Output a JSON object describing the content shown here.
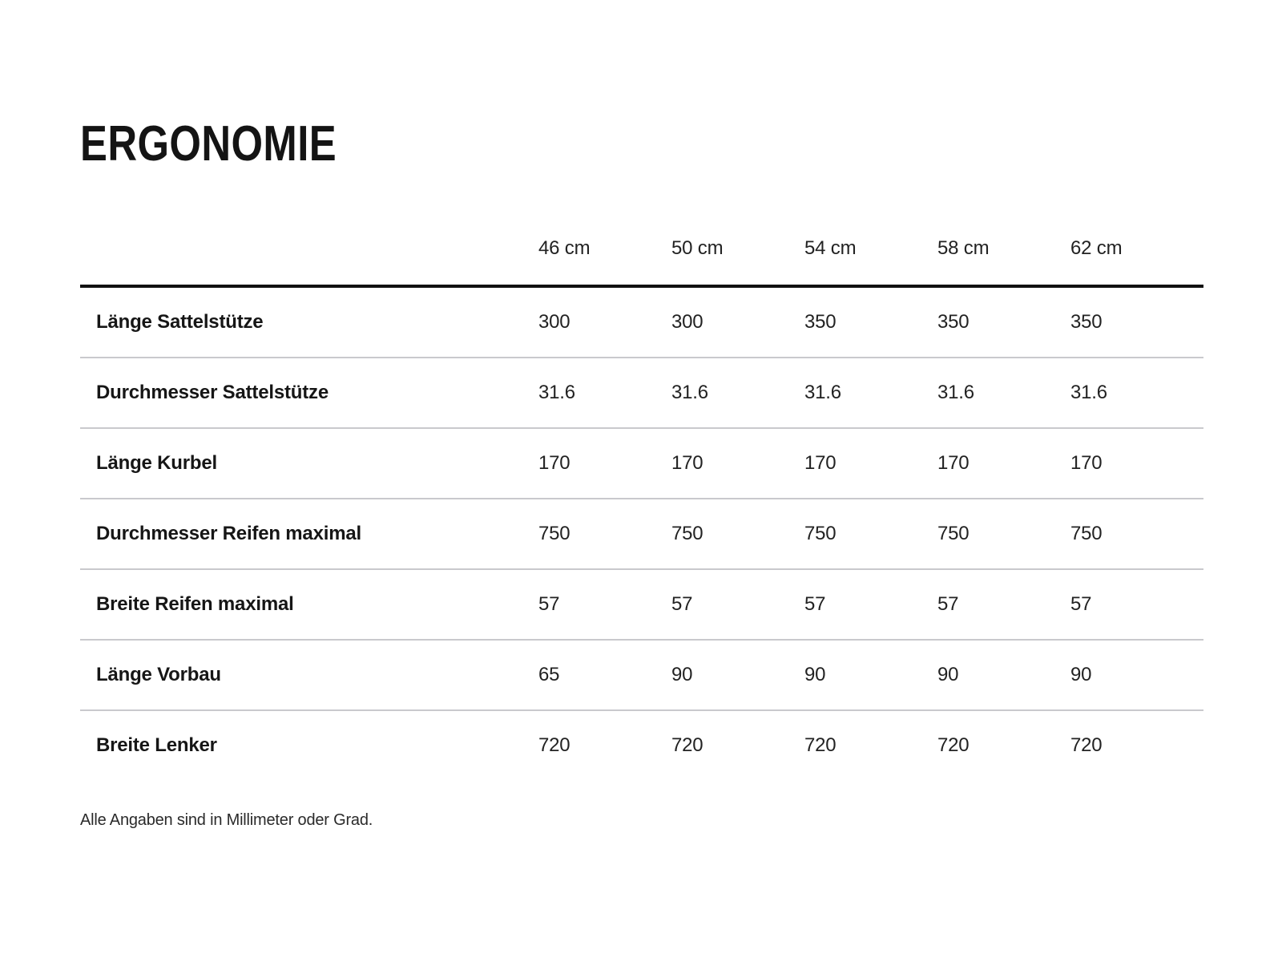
{
  "title": "ERGONOMIE",
  "table": {
    "size_columns": [
      "46 cm",
      "50 cm",
      "54 cm",
      "58 cm",
      "62 cm"
    ],
    "rows": [
      {
        "label": "Länge Sattelstütze",
        "values": [
          "300",
          "300",
          "350",
          "350",
          "350"
        ]
      },
      {
        "label": "Durchmesser Sattelstütze",
        "values": [
          "31.6",
          "31.6",
          "31.6",
          "31.6",
          "31.6"
        ]
      },
      {
        "label": "Länge Kurbel",
        "values": [
          "170",
          "170",
          "170",
          "170",
          "170"
        ]
      },
      {
        "label": "Durchmesser Reifen maximal",
        "values": [
          "750",
          "750",
          "750",
          "750",
          "750"
        ]
      },
      {
        "label": "Breite Reifen maximal",
        "values": [
          "57",
          "57",
          "57",
          "57",
          "57"
        ]
      },
      {
        "label": "Länge Vorbau",
        "values": [
          "65",
          "90",
          "90",
          "90",
          "90"
        ]
      },
      {
        "label": "Breite Lenker",
        "values": [
          "720",
          "720",
          "720",
          "720",
          "720"
        ]
      }
    ]
  },
  "footnote": "Alle Angaben sind in Millimeter oder Grad.",
  "colors": {
    "text": "#1a1a1a",
    "header_rule": "#111111",
    "row_separator": "#c9c9cd",
    "background": "#ffffff"
  }
}
